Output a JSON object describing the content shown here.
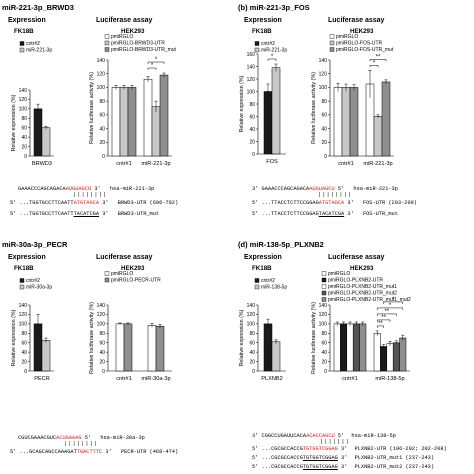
{
  "colors": {
    "black": "#1a1a1a",
    "light_gray": "#c8c8c8",
    "white": "#ffffff",
    "dark_gray": "#555555",
    "mid_gray": "#8f8f8f",
    "seed_red": "#d62020"
  },
  "panels": [
    {
      "label": "miR-221-3p_BRWD3",
      "expression": {
        "heading": "Expression",
        "cell": "FK18B",
        "legend": [
          "cntr#2",
          "miR-221-3p"
        ],
        "gene": "BRWD3"
      },
      "luciferase": {
        "heading": "Luciferase assay",
        "cell": "HEK293",
        "legend": [
          "pmiRGLO",
          "pmiRGLO-BRWD3-UTR",
          "pmiRGLO-BRWD3-UTR_mut"
        ],
        "groups": [
          "cntr#1",
          "miR-221-3p"
        ]
      },
      "sequence": {
        "mirna": [
          "GAAACCCAGCAGACA",
          "AUGUAGCU",
          "3'"
        ],
        "mirna_name": "hsa-miR-221-3p",
        "utr_seq": "...TGGTGCCTTCAATT",
        "utr_seed": "ATGTAGCA",
        "utr_name": "BRWD3-UTR (696-702)",
        "mut_seq": "...TGGTGCCTTCAATT",
        "mut_seed": "TACATCGA",
        "mut_name": "BRWD3-UTR_mut"
      }
    },
    {
      "label": "(b) miR-221-3p_FOS",
      "expression": {
        "heading": "Expression",
        "cell": "FK18B",
        "legend": [
          "cntr#2",
          "miR-221-3p"
        ],
        "gene": "FOS"
      },
      "luciferase": {
        "heading": "Luciferase assay",
        "cell": "HEK293",
        "legend": [
          "pmiRGLO",
          "pmiRGLO-FOS-UTR",
          "pmiRGLO-FOS-UTR_mut"
        ],
        "groups": [
          "cntr#1",
          "miR-221-3p"
        ]
      },
      "sequence": {
        "mirna": [
          "GAAACCCAGCAGACA",
          "AUGUAGCU",
          "3'"
        ],
        "mirna_name": "hsa-miR-221-3p",
        "utr_seq": "...TTACCTCTTCCGGAG",
        "utr_seed": "ATGTAGCA",
        "utr_name": "FOS-UTR (203-209)",
        "mut_seq": "...TTACCTCTTCCGGAG",
        "mut_seed": "TACATCGA",
        "mut_name": "FOS-UTR_mut"
      }
    },
    {
      "label": "miR-30a-3p_PECR",
      "expression": {
        "heading": "Expression",
        "cell": "FK18B",
        "legend": [
          "cntr#2",
          "miR-30a-3p"
        ],
        "gene": "PECR"
      },
      "luciferase": {
        "heading": "Luciferase assay",
        "cell": "HEK293",
        "legend": [
          "pmiRGLO",
          "pmiRGLO-PECR-UTR"
        ],
        "groups": [
          "cntr#1",
          "miR-30a-3p"
        ]
      },
      "sequence": {
        "mirna": [
          "CGUCGAAACGUC",
          "ACUGAAAG",
          "3'"
        ],
        "mirna_name": "hsa-miR-30a-3p",
        "utr_seq": "...GCAGCAGCCAAAGAT",
        "utr_seed": "TGACTTTC",
        "utr_name": "PECR-UTR (468-474)"
      }
    },
    {
      "label": "(d) miR-138-5p_PLXNB2",
      "expression": {
        "heading": "Expression",
        "cell": "FK18B",
        "legend": [
          "cntr#2",
          "miR-138-5p"
        ],
        "gene": "PLXNB2"
      },
      "luciferase": {
        "heading": "Luciferase assay",
        "cell": "HEK293",
        "legend": [
          "pmiRGLO",
          "pmiRGLO-PLXNB2-UTR",
          "pmiRGLO-PLXNB2-UTR_mut1",
          "pmiRGLO-PLXNB2-UTR_mut2",
          "pmiRGLO-PLXNB2-UTR_mut1_mut2"
        ],
        "groups": [
          "cntr#1",
          "miR-138-5p"
        ]
      },
      "sequence": {
        "mirna": [
          "CGGCCUGAUUCACA",
          "ACACCAGCU",
          "5'"
        ],
        "mirna_name": "hsa-miR-138-5p",
        "utr_seq": "...CGCGCCACCG",
        "utr_seed": "TGTGGTCGGAG",
        "utr_name": "PLXNB2-UTR (196-202; 202-208)",
        "mut_seq": "...CGCGCCACCG",
        "mut_seed": "TGTGGTCGGAG",
        "mut_name": "PLXNB2-UTR_mut1 (237-243)",
        "mut2_seq": "...CGCGCCACCG",
        "mut2_seed": "TGTGGTCGGAG",
        "mut2_name": "PLXNB2-UTR_mut2 (237-243)"
      }
    }
  ],
  "ylabels": {
    "expression": "Relative expression (%)",
    "luciferase": "Relative luciferase activity (%)"
  },
  "primes": {
    "three": "3'",
    "five": "5'"
  },
  "chart_data": [
    {
      "type": "bar",
      "panel": "a-expression",
      "categories": [
        "BRWD3"
      ],
      "series": [
        {
          "name": "cntr#2",
          "values": [
            100
          ]
        },
        {
          "name": "miR-221-3p",
          "values": [
            60
          ]
        }
      ],
      "errors": [
        [
          10
        ],
        [
          3
        ]
      ],
      "ylim": [
        0,
        140
      ],
      "yticks": [
        0,
        20,
        40,
        60,
        80,
        100,
        120,
        140
      ],
      "ylabel": "Relative expression (%)"
    },
    {
      "type": "bar",
      "panel": "a-luciferase",
      "categories": [
        "cntr#1",
        "miR-221-3p"
      ],
      "series": [
        {
          "name": "pmiRGLO",
          "values": [
            100,
            112
          ]
        },
        {
          "name": "pmiRGLO-BRWD3-UTR",
          "values": [
            100,
            72
          ]
        },
        {
          "name": "pmiRGLO-BRWD3-UTR_mut",
          "values": [
            100,
            118
          ]
        }
      ],
      "errors": [
        [
          3,
          4
        ],
        [
          3,
          8
        ],
        [
          3,
          3
        ]
      ],
      "ylim": [
        0,
        140
      ],
      "yticks": [
        0,
        20,
        40,
        60,
        80,
        100,
        120,
        140
      ],
      "ylabel": "Relative luciferase activity (%)",
      "sig": [
        "*",
        "*"
      ]
    },
    {
      "type": "bar",
      "panel": "b-expression",
      "categories": [
        "FOS"
      ],
      "series": [
        {
          "name": "cntr#2",
          "values": [
            100
          ]
        },
        {
          "name": "miR-221-3p",
          "values": [
            138
          ]
        }
      ],
      "errors": [
        [
          12
        ],
        [
          6
        ]
      ],
      "ylim": [
        0,
        160
      ],
      "yticks": [
        0,
        20,
        40,
        60,
        80,
        100,
        120,
        140,
        160
      ],
      "ylabel": "Relative expression (%)",
      "sig": [
        "*"
      ]
    },
    {
      "type": "bar",
      "panel": "b-luciferase",
      "categories": [
        "cntr#1",
        "miR-221-3p"
      ],
      "series": [
        {
          "name": "pmiRGLO",
          "values": [
            100,
            105
          ]
        },
        {
          "name": "pmiRGLO-FOS-UTR",
          "values": [
            100,
            58
          ]
        },
        {
          "name": "pmiRGLO-FOS-UTR_mut",
          "values": [
            100,
            108
          ]
        }
      ],
      "errors": [
        [
          6,
          20
        ],
        [
          5,
          2
        ],
        [
          4,
          3
        ]
      ],
      "ylim": [
        0,
        140
      ],
      "yticks": [
        0,
        20,
        40,
        60,
        80,
        100,
        120,
        140
      ],
      "ylabel": "Relative luciferase activity (%)",
      "sig": [
        "*",
        "**"
      ]
    },
    {
      "type": "bar",
      "panel": "c-expression",
      "categories": [
        "PECR"
      ],
      "series": [
        {
          "name": "cntr#2",
          "values": [
            100
          ]
        },
        {
          "name": "miR-30a-3p",
          "values": [
            65
          ]
        }
      ],
      "errors": [
        [
          20
        ],
        [
          5
        ]
      ],
      "ylim": [
        0,
        140
      ],
      "yticks": [
        0,
        20,
        40,
        60,
        80,
        100,
        120,
        140
      ],
      "ylabel": "Relative expression (%)"
    },
    {
      "type": "bar",
      "panel": "c-luciferase",
      "categories": [
        "cntr#1",
        "miR-30a-3p"
      ],
      "series": [
        {
          "name": "pmiRGLO",
          "values": [
            100,
            97
          ]
        },
        {
          "name": "pmiRGLO-PECR-UTR",
          "values": [
            100,
            95
          ]
        }
      ],
      "errors": [
        [
          2,
          4
        ],
        [
          2,
          4
        ]
      ],
      "ylim": [
        0,
        140
      ],
      "yticks": [
        0,
        20,
        40,
        60,
        80,
        100,
        120,
        140
      ],
      "ylabel": "Relative luciferase activity (%)"
    },
    {
      "type": "bar",
      "panel": "d-expression",
      "categories": [
        "PLXNB2"
      ],
      "series": [
        {
          "name": "cntr#2",
          "values": [
            100
          ]
        },
        {
          "name": "miR-138-5p",
          "values": [
            62
          ]
        }
      ],
      "errors": [
        [
          10
        ],
        [
          4
        ]
      ],
      "ylim": [
        0,
        140
      ],
      "yticks": [
        0,
        20,
        40,
        60,
        80,
        100,
        120,
        140
      ],
      "ylabel": "Relative expression (%)"
    },
    {
      "type": "bar",
      "panel": "d-luciferase",
      "categories": [
        "cntr#1",
        "miR-138-5p"
      ],
      "series": [
        {
          "name": "pmiRGLO",
          "values": [
            100,
            80
          ]
        },
        {
          "name": "pmiRGLO-PLXNB2-UTR",
          "values": [
            100,
            52
          ]
        },
        {
          "name": "pmiRGLO-PLXNB2-UTR_mut1",
          "values": [
            100,
            58
          ]
        },
        {
          "name": "pmiRGLO-PLXNB2-UTR_mut2",
          "values": [
            100,
            60
          ]
        },
        {
          "name": "pmiRGLO-PLXNB2-UTR_mut1_mut2",
          "values": [
            100,
            70
          ]
        }
      ],
      "errors": [
        [
          4,
          5
        ],
        [
          4,
          4
        ],
        [
          4,
          5
        ],
        [
          4,
          4
        ],
        [
          4,
          6
        ]
      ],
      "ylim": [
        0,
        140
      ],
      "yticks": [
        0,
        20,
        40,
        60,
        80,
        100,
        120,
        140
      ],
      "ylabel": "Relative luciferase activity (%)",
      "sig": [
        "**",
        "**",
        "**",
        "*",
        "*"
      ]
    }
  ]
}
